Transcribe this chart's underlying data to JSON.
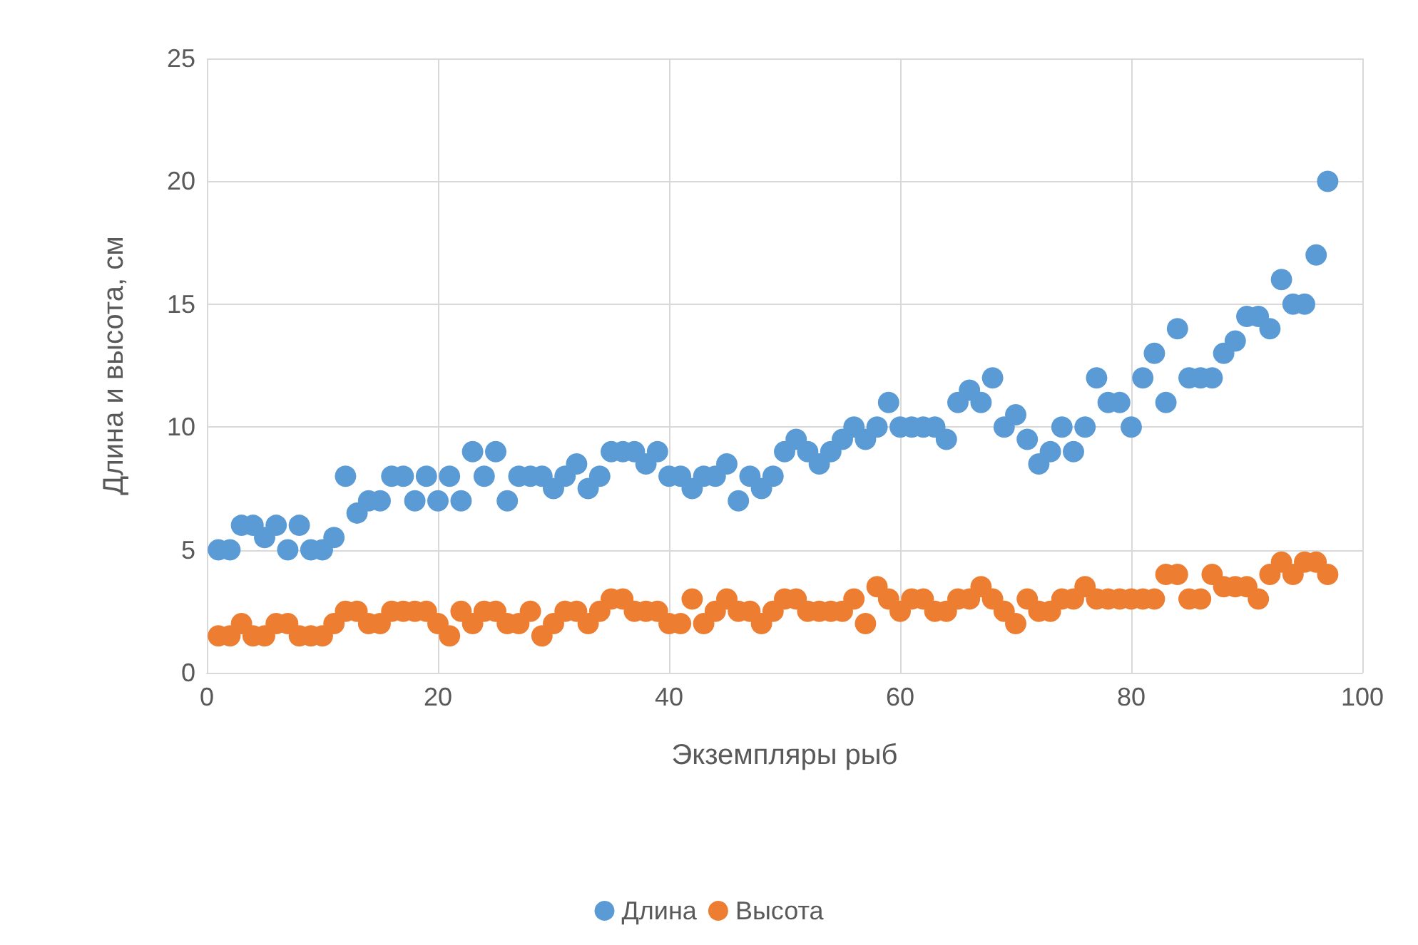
{
  "chart_data": {
    "type": "scatter",
    "xlabel": "Экземпляры рыб",
    "ylabel": "Длина и высота, см",
    "x": [
      1,
      2,
      3,
      4,
      5,
      6,
      7,
      8,
      9,
      10,
      11,
      12,
      13,
      14,
      15,
      16,
      17,
      18,
      19,
      20,
      21,
      22,
      23,
      24,
      25,
      26,
      27,
      28,
      29,
      30,
      31,
      32,
      33,
      34,
      35,
      36,
      37,
      38,
      39,
      40,
      41,
      42,
      43,
      44,
      45,
      46,
      47,
      48,
      49,
      50,
      51,
      52,
      53,
      54,
      55,
      56,
      57,
      58,
      59,
      60,
      61,
      62,
      63,
      64,
      65,
      66,
      67,
      68,
      69,
      70,
      71,
      72,
      73,
      74,
      75,
      76,
      77,
      78,
      79,
      80,
      81,
      82,
      83,
      84,
      85,
      86,
      87,
      88,
      89,
      90,
      91,
      92,
      93,
      94,
      95,
      96,
      97
    ],
    "series": [
      {
        "name": "Длина",
        "color": "#5b9bd5",
        "values": [
          5,
          5,
          6,
          6,
          5.5,
          6,
          5,
          6,
          5,
          5,
          5.5,
          8,
          6.5,
          7,
          7,
          8,
          8,
          7,
          8,
          7,
          8,
          7,
          9,
          8,
          9,
          7,
          8,
          8,
          8,
          7.5,
          8,
          8.5,
          7.5,
          8,
          9,
          9,
          9,
          8.5,
          9,
          8,
          8,
          7.5,
          8,
          8,
          8.5,
          7,
          8,
          7.5,
          8,
          9,
          9.5,
          9,
          8.5,
          9,
          9.5,
          10,
          9.5,
          10,
          11,
          10,
          10,
          10,
          10,
          9.5,
          11,
          11.5,
          11,
          12,
          10,
          10.5,
          9.5,
          8.5,
          9,
          10,
          9,
          10,
          12,
          11,
          11,
          10,
          12,
          13,
          11,
          14,
          12,
          12,
          12,
          13,
          13.5,
          14.5,
          14.5,
          14,
          16,
          15,
          15,
          17,
          20
        ]
      },
      {
        "name": "Высота",
        "color": "#ed7d31",
        "values": [
          1.5,
          1.5,
          2,
          1.5,
          1.5,
          2,
          2,
          1.5,
          1.5,
          1.5,
          2,
          2.5,
          2.5,
          2,
          2,
          2.5,
          2.5,
          2.5,
          2.5,
          2,
          1.5,
          2.5,
          2,
          2.5,
          2.5,
          2,
          2,
          2.5,
          1.5,
          2,
          2.5,
          2.5,
          2,
          2.5,
          3,
          3,
          2.5,
          2.5,
          2.5,
          2,
          2,
          3,
          2,
          2.5,
          3,
          2.5,
          2.5,
          2,
          2.5,
          3,
          3,
          2.5,
          2.5,
          2.5,
          2.5,
          3,
          2,
          3.5,
          3,
          2.5,
          3,
          3,
          2.5,
          2.5,
          3,
          3,
          3.5,
          3,
          2.5,
          2,
          3,
          2.5,
          2.5,
          3,
          3,
          3.5,
          3,
          3,
          3,
          3,
          3,
          3,
          4,
          4,
          3,
          3,
          4,
          3.5,
          3.5,
          3.5,
          3,
          4,
          4.5,
          4,
          4.5,
          4.5,
          4
        ]
      }
    ],
    "xlim": [
      0,
      100
    ],
    "xticks": [
      0,
      20,
      40,
      60,
      80,
      100
    ],
    "ylim": [
      0,
      25
    ],
    "yticks": [
      0,
      5,
      10,
      15,
      20,
      25
    ],
    "grid": true,
    "legend": "bottom",
    "marker": "circle"
  }
}
